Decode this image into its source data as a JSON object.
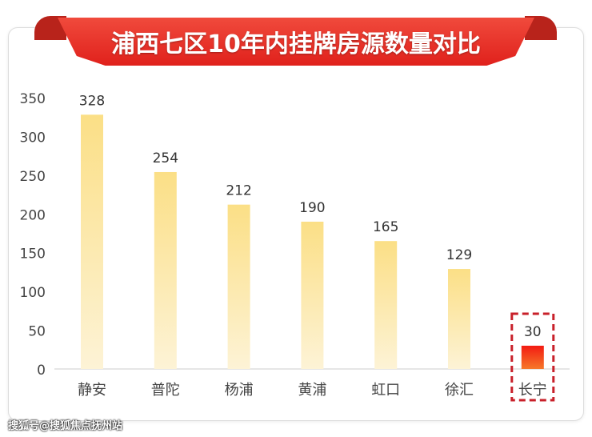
{
  "chart_data": {
    "type": "bar",
    "title": "浦西七区10年内挂牌房源数量对比",
    "categories": [
      "静安",
      "普陀",
      "杨浦",
      "黄浦",
      "虹口",
      "徐汇",
      "长宁"
    ],
    "values": [
      328,
      254,
      212,
      190,
      165,
      129,
      30
    ],
    "yticks": [
      0,
      50,
      100,
      150,
      200,
      250,
      300,
      350
    ],
    "ylim": [
      0,
      350
    ],
    "xlabel": "",
    "ylabel": "",
    "highlight": "长宁",
    "colors": {
      "bar": "#fbe08a",
      "highlight": "#f0201a",
      "title_bg": "#e52b22"
    }
  },
  "watermark": "搜狐号@搜狐焦点抚州站"
}
